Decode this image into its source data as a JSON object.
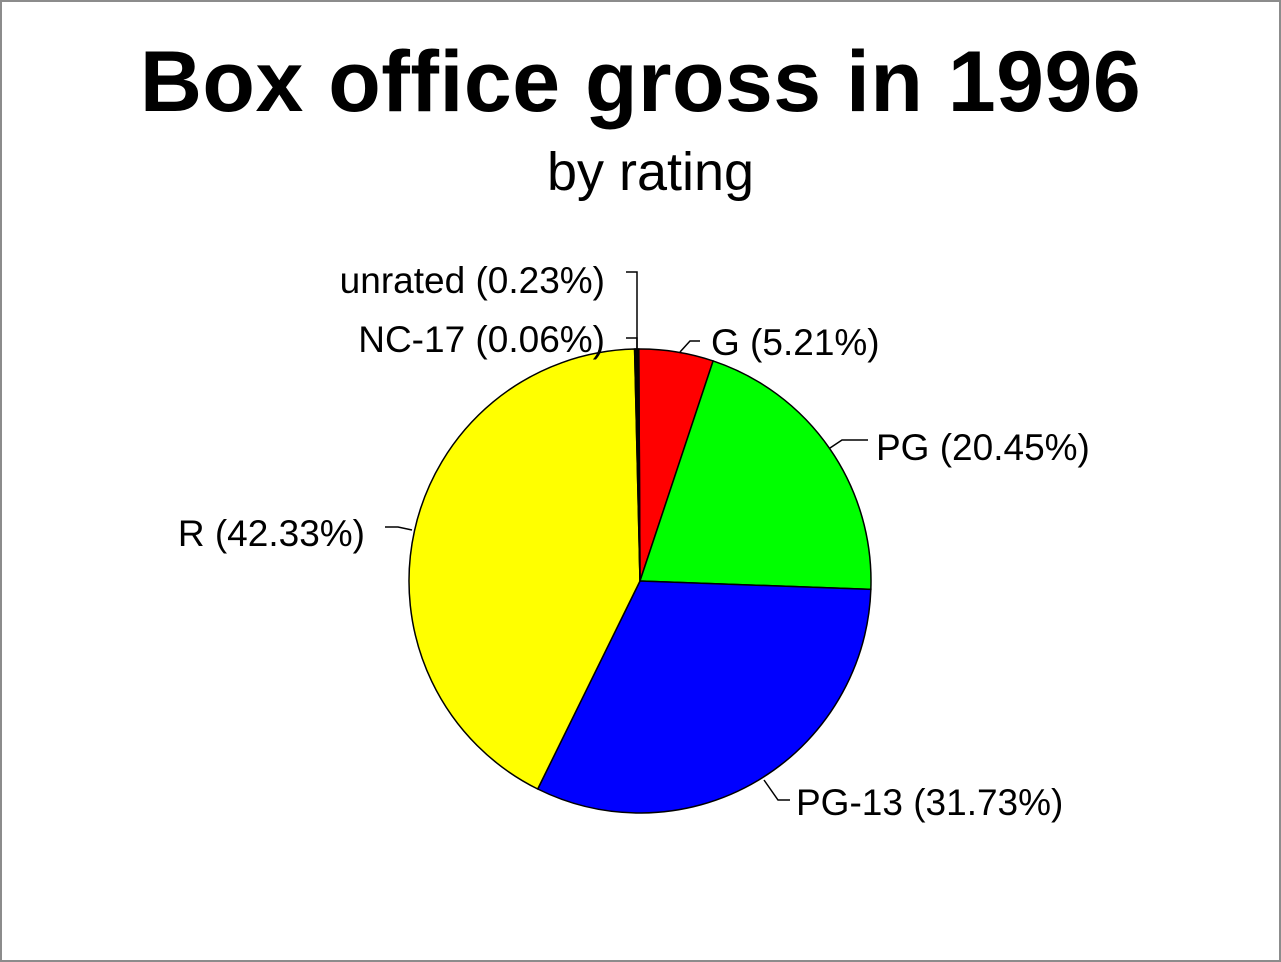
{
  "chart_data": {
    "type": "pie",
    "title": "Box office gross in 1996",
    "subtitle": "by rating",
    "slices": [
      {
        "label": "G (5.21%)",
        "category": "G",
        "value": 5.21,
        "color": "#ff0000"
      },
      {
        "label": "PG (20.45%)",
        "category": "PG",
        "value": 20.45,
        "color": "#00ff00"
      },
      {
        "label": "PG-13 (31.73%)",
        "category": "PG-13",
        "value": 31.73,
        "color": "#0000ff"
      },
      {
        "label": "R (42.33%)",
        "category": "R",
        "value": 42.33,
        "color": "#ffff00"
      },
      {
        "label": "NC-17 (0.06%)",
        "category": "NC-17",
        "value": 0.06,
        "color": "#000000"
      },
      {
        "label": "unrated (0.23%)",
        "category": "unrated",
        "value": 0.23,
        "color": "#000000"
      }
    ]
  }
}
